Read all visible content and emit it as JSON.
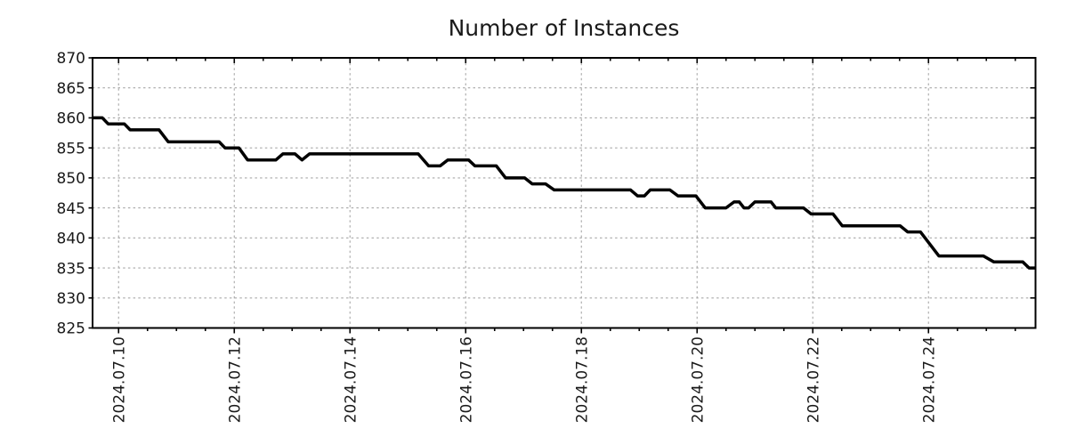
{
  "title": "Number of Instances",
  "colors": {
    "background": "#ffffff",
    "grid": "#a8a8a8",
    "axis": "#000000",
    "line": "#000000",
    "text": "#1a1a1a"
  },
  "chart_data": {
    "type": "line",
    "title": "Number of Instances",
    "legend": "none",
    "grid": "dotted",
    "x_axis": {
      "unit": "date",
      "range_days": [
        9.55,
        25.85
      ],
      "major_tick_days": [
        10,
        12,
        14,
        16,
        18,
        20,
        22,
        24
      ],
      "major_tick_labels": [
        "2024.07.10",
        "2024.07.12",
        "2024.07.14",
        "2024.07.16",
        "2024.07.18",
        "2024.07.20",
        "2024.07.22",
        "2024.07.24"
      ],
      "minor_tick_interval_days": 0.5
    },
    "y_axis": {
      "range": [
        825,
        870
      ],
      "ticks": [
        825,
        830,
        835,
        840,
        845,
        850,
        855,
        860,
        865,
        870
      ]
    },
    "series": [
      {
        "name": "instances",
        "color": "#000000",
        "points": [
          [
            9.55,
            860
          ],
          [
            9.72,
            860
          ],
          [
            9.82,
            859
          ],
          [
            10.1,
            859
          ],
          [
            10.2,
            858
          ],
          [
            10.7,
            858
          ],
          [
            10.86,
            856
          ],
          [
            11.74,
            856
          ],
          [
            11.84,
            855
          ],
          [
            12.08,
            855
          ],
          [
            12.23,
            853
          ],
          [
            12.72,
            853
          ],
          [
            12.84,
            854
          ],
          [
            13.05,
            854
          ],
          [
            13.17,
            853
          ],
          [
            13.3,
            854
          ],
          [
            15.18,
            854
          ],
          [
            15.36,
            852
          ],
          [
            15.56,
            852
          ],
          [
            15.69,
            853
          ],
          [
            16.05,
            853
          ],
          [
            16.16,
            852
          ],
          [
            16.53,
            852
          ],
          [
            16.69,
            850
          ],
          [
            17.02,
            850
          ],
          [
            17.15,
            849
          ],
          [
            17.38,
            849
          ],
          [
            17.53,
            848
          ],
          [
            18.85,
            848
          ],
          [
            18.97,
            847
          ],
          [
            19.09,
            847
          ],
          [
            19.19,
            848
          ],
          [
            19.53,
            848
          ],
          [
            19.67,
            847
          ],
          [
            19.98,
            847
          ],
          [
            20.14,
            845
          ],
          [
            20.5,
            845
          ],
          [
            20.64,
            846
          ],
          [
            20.73,
            846
          ],
          [
            20.81,
            845
          ],
          [
            20.89,
            845
          ],
          [
            21.0,
            846
          ],
          [
            21.28,
            846
          ],
          [
            21.36,
            845
          ],
          [
            21.84,
            845
          ],
          [
            21.97,
            844
          ],
          [
            22.35,
            844
          ],
          [
            22.51,
            842
          ],
          [
            23.51,
            842
          ],
          [
            23.64,
            841
          ],
          [
            23.86,
            841
          ],
          [
            24.18,
            837
          ],
          [
            24.95,
            837
          ],
          [
            25.13,
            836
          ],
          [
            25.63,
            836
          ],
          [
            25.74,
            835
          ],
          [
            25.85,
            835
          ]
        ]
      }
    ]
  }
}
